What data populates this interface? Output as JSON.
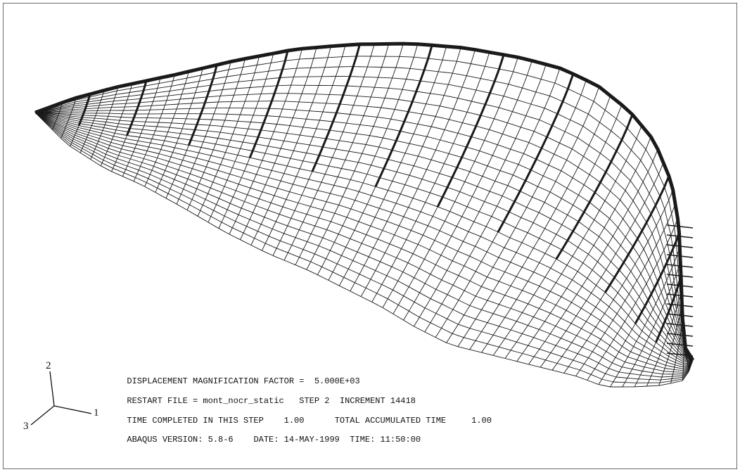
{
  "triad": {
    "axis_1": "1",
    "axis_2": "2",
    "axis_3": "3"
  },
  "legend": {
    "line1": {
      "label": "DISPLACEMENT MAGNIFICATION FACTOR =",
      "value": "5.000E+03"
    },
    "line2": {
      "restart_label": "RESTART FILE = mont_nocr_static",
      "step": "STEP 2",
      "increment": "INCREMENT 14418"
    },
    "line3": {
      "time_label": "TIME COMPLETED IN THIS STEP",
      "time_value": "1.00",
      "total_label": "TOTAL ACCUMULATED TIME",
      "total_value": "1.00"
    },
    "line4": {
      "version": "ABAQUS VERSION: 5.8-6",
      "date": "DATE: 14-MAY-1999",
      "time": "TIME: 11:50:00"
    }
  },
  "colors": {
    "mesh": "#1a1a1a",
    "frame": "#6a6a6a",
    "background": "#ffffff"
  }
}
